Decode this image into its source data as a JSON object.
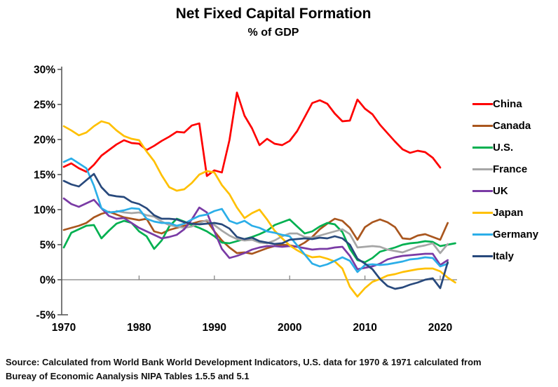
{
  "header": {
    "title": "Net Fixed Capital Formation",
    "subtitle": "% of GDP"
  },
  "source": {
    "line1": "Source:  Calculated from World Bank World Development Indicators, U.S. data for 1970 & 1971 calculated from",
    "line2": "Bureay of Economic Aanalysis NIPA Tables 1.5.5 and 5.1"
  },
  "chart_data": {
    "type": "line",
    "title": "Net Fixed Capital Formation",
    "subtitle": "% of GDP",
    "xlabel": "",
    "ylabel": "",
    "xlim": [
      1970,
      2022
    ],
    "ylim": [
      -5,
      30
    ],
    "grid": "zero-line-only",
    "legend_position": "right",
    "x_tick_labels": [
      "1970",
      "1980",
      "1990",
      "2000",
      "2010",
      "2020"
    ],
    "x_tick_years": [
      1970,
      1980,
      1990,
      2000,
      2010,
      2020
    ],
    "y_tick_labels": [
      "30%",
      "25%",
      "20%",
      "15%",
      "10%",
      "5%",
      "0%",
      "-5%"
    ],
    "y_tick_values": [
      30,
      25,
      20,
      15,
      10,
      5,
      0,
      -5
    ],
    "years": [
      1970,
      1971,
      1972,
      1973,
      1974,
      1975,
      1976,
      1977,
      1978,
      1979,
      1980,
      1981,
      1982,
      1983,
      1984,
      1985,
      1986,
      1987,
      1988,
      1989,
      1990,
      1991,
      1992,
      1993,
      1994,
      1995,
      1996,
      1997,
      1998,
      1999,
      2000,
      2001,
      2002,
      2003,
      2004,
      2005,
      2006,
      2007,
      2008,
      2009,
      2010,
      2011,
      2012,
      2013,
      2014,
      2015,
      2016,
      2017,
      2018,
      2019,
      2020,
      2021,
      2022
    ],
    "series": [
      {
        "name": "China",
        "color": "#FE0000",
        "values": [
          16.1,
          16.6,
          15.9,
          15.4,
          16.4,
          17.7,
          18.5,
          19.3,
          19.9,
          19.5,
          19.4,
          18.5,
          19.1,
          19.8,
          20.4,
          21.1,
          21.0,
          22.0,
          22.3,
          14.8,
          15.6,
          15.3,
          19.9,
          26.7,
          23.4,
          21.6,
          19.2,
          20.1,
          19.4,
          19.2,
          19.8,
          21.2,
          23.2,
          25.2,
          25.6,
          25.1,
          23.7,
          22.6,
          22.7,
          25.7,
          24.4,
          23.6,
          22.1,
          20.9,
          19.7,
          18.6,
          18.1,
          18.4,
          18.2,
          17.4,
          16.0,
          null,
          null
        ]
      },
      {
        "name": "Canada",
        "color": "#A9561E",
        "values": [
          7.1,
          7.4,
          7.7,
          8.1,
          8.9,
          9.4,
          9.7,
          9.3,
          8.9,
          8.7,
          8.5,
          8.7,
          6.9,
          6.6,
          7.1,
          7.4,
          7.7,
          8.0,
          8.3,
          8.4,
          6.9,
          5.6,
          4.6,
          3.8,
          3.9,
          3.7,
          4.1,
          4.5,
          4.8,
          5.0,
          4.9,
          4.7,
          5.3,
          6.1,
          7.2,
          8.0,
          8.7,
          8.4,
          7.4,
          5.7,
          7.5,
          8.2,
          8.6,
          8.2,
          7.5,
          5.9,
          5.8,
          6.3,
          6.5,
          6.1,
          5.7,
          8.1,
          null
        ]
      },
      {
        "name": "U.S.",
        "color": "#00B050",
        "values": [
          4.6,
          6.7,
          7.2,
          7.7,
          7.8,
          5.9,
          7.0,
          8.0,
          8.4,
          8.1,
          6.9,
          6.2,
          4.4,
          5.6,
          7.6,
          8.7,
          8.3,
          7.8,
          7.4,
          6.9,
          6.2,
          5.3,
          5.2,
          5.5,
          5.8,
          6.1,
          6.5,
          7.0,
          7.8,
          8.2,
          8.6,
          7.6,
          6.6,
          6.9,
          7.6,
          8.1,
          7.9,
          6.8,
          4.4,
          2.8,
          2.5,
          3.1,
          4.0,
          4.3,
          4.6,
          5.0,
          5.2,
          5.3,
          5.5,
          5.4,
          4.8,
          5.0,
          5.2
        ]
      },
      {
        "name": "France",
        "color": "#A6A6A6",
        "values": [
          null,
          null,
          null,
          null,
          null,
          null,
          null,
          9.8,
          9.6,
          9.5,
          9.6,
          9.2,
          9.0,
          8.3,
          7.8,
          7.6,
          7.4,
          7.6,
          8.1,
          8.5,
          7.8,
          7.0,
          6.3,
          5.8,
          5.6,
          5.7,
          5.3,
          5.2,
          5.6,
          6.2,
          6.6,
          6.6,
          6.1,
          6.0,
          6.3,
          6.6,
          6.9,
          7.2,
          6.5,
          4.6,
          4.7,
          4.8,
          4.7,
          4.3,
          4.1,
          3.9,
          4.3,
          4.7,
          4.9,
          5.2,
          3.8,
          5.1,
          null
        ]
      },
      {
        "name": "UK",
        "color": "#7A3BA5",
        "values": [
          11.6,
          10.8,
          10.4,
          10.9,
          11.4,
          10.2,
          9.1,
          8.7,
          8.8,
          8.1,
          7.4,
          6.9,
          6.4,
          5.9,
          6.1,
          6.4,
          7.2,
          8.6,
          10.3,
          9.6,
          6.9,
          4.4,
          3.1,
          3.4,
          3.8,
          4.3,
          4.6,
          4.8,
          4.8,
          4.7,
          4.8,
          4.7,
          4.5,
          4.3,
          4.4,
          4.4,
          4.6,
          4.7,
          3.4,
          1.5,
          1.7,
          1.9,
          2.3,
          2.9,
          3.2,
          3.4,
          3.5,
          3.6,
          3.7,
          3.7,
          2.1,
          2.8,
          null
        ]
      },
      {
        "name": "Japan",
        "color": "#FFC000",
        "values": [
          21.9,
          21.3,
          20.6,
          21.0,
          21.9,
          22.6,
          22.3,
          21.3,
          20.5,
          20.1,
          19.9,
          18.3,
          16.9,
          14.9,
          13.2,
          12.7,
          12.9,
          13.8,
          15.0,
          15.5,
          15.3,
          13.5,
          12.2,
          10.3,
          8.8,
          9.5,
          10.0,
          8.6,
          7.0,
          5.9,
          4.9,
          4.2,
          3.6,
          3.2,
          3.3,
          3.0,
          2.6,
          1.6,
          -1.0,
          -2.4,
          -1.2,
          -0.3,
          0.1,
          0.6,
          0.8,
          1.1,
          1.3,
          1.5,
          1.6,
          1.6,
          1.2,
          0.3,
          -0.4
        ]
      },
      {
        "name": "Germany",
        "color": "#2BAEE8",
        "values": [
          16.8,
          17.3,
          16.6,
          15.9,
          13.4,
          10.2,
          9.6,
          9.7,
          9.9,
          10.2,
          10.1,
          8.7,
          8.3,
          8.1,
          8.1,
          7.7,
          8.0,
          8.6,
          9.1,
          9.3,
          9.8,
          10.1,
          8.4,
          8.0,
          8.4,
          7.7,
          7.4,
          6.9,
          6.7,
          6.4,
          6.2,
          4.9,
          3.6,
          2.3,
          1.9,
          2.2,
          2.7,
          3.2,
          2.7,
          1.1,
          2.1,
          2.2,
          2.1,
          2.2,
          2.4,
          2.6,
          2.9,
          3.0,
          3.2,
          3.1,
          1.9,
          2.3,
          null
        ]
      },
      {
        "name": "Italy",
        "color": "#28497C",
        "values": [
          14.1,
          13.6,
          13.3,
          14.2,
          15.1,
          13.2,
          12.1,
          11.9,
          11.8,
          11.1,
          10.8,
          10.2,
          9.2,
          8.7,
          8.7,
          8.6,
          8.2,
          8.0,
          7.9,
          8.0,
          8.1,
          7.9,
          7.3,
          6.1,
          5.8,
          6.0,
          5.5,
          5.3,
          5.1,
          5.2,
          5.7,
          5.8,
          5.9,
          5.8,
          6.0,
          5.9,
          6.2,
          5.9,
          5.0,
          3.0,
          2.3,
          1.5,
          0.1,
          -0.9,
          -1.3,
          -1.1,
          -0.7,
          -0.4,
          0.0,
          0.2,
          -1.2,
          2.5,
          null
        ]
      }
    ]
  },
  "legend": {
    "items": [
      "China",
      "Canada",
      "U.S.",
      "France",
      "UK",
      "Japan",
      "Germany",
      "Italy"
    ]
  }
}
